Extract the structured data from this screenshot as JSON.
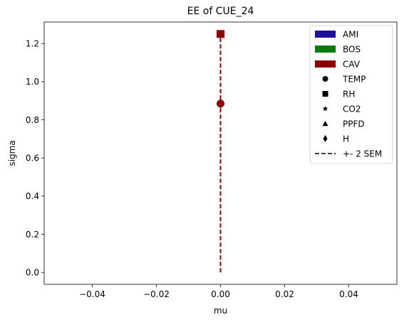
{
  "chart_data": {
    "type": "scatter",
    "title": "EE of CUE_24",
    "xlabel": "mu",
    "ylabel": "sigma",
    "xlim": [
      -0.055,
      0.055
    ],
    "ylim": [
      -0.0625,
      1.3125
    ],
    "xticks": [
      -0.04,
      -0.02,
      0.0,
      0.02,
      0.04
    ],
    "xtick_labels": [
      "−0.04",
      "−0.02",
      "0.00",
      "0.02",
      "0.04"
    ],
    "yticks": [
      0.0,
      0.2,
      0.4,
      0.6,
      0.8,
      1.0,
      1.2
    ],
    "ytick_labels": [
      "0.0",
      "0.2",
      "0.4",
      "0.6",
      "0.8",
      "1.0",
      "1.2"
    ],
    "grid": false,
    "legend_position": "upper right",
    "sites": [
      {
        "name": "AMI",
        "color": "#1f0f9b"
      },
      {
        "name": "BOS",
        "color": "#0a7a0a"
      },
      {
        "name": "CAV",
        "color": "#8b0000"
      }
    ],
    "variables": [
      {
        "name": "TEMP",
        "marker": "circle"
      },
      {
        "name": "RH",
        "marker": "square"
      },
      {
        "name": "CO2",
        "marker": "star"
      },
      {
        "name": "PPFD",
        "marker": "triangle"
      },
      {
        "name": "H",
        "marker": "diamond"
      }
    ],
    "sem_label": "+- 2 SEM",
    "points": [
      {
        "site": "CAV",
        "variable": "RH",
        "mu": 0.0,
        "sigma": 1.25
      },
      {
        "site": "CAV",
        "variable": "TEMP",
        "mu": 0.0,
        "sigma": 0.885
      },
      {
        "site": "CAV",
        "variable": "H",
        "mu": 0.0,
        "sigma": 0.885
      }
    ],
    "sem_lines": [
      {
        "site": "CAV",
        "x": [
          0.0,
          0.0
        ],
        "y": [
          0.0,
          1.25
        ]
      }
    ]
  }
}
